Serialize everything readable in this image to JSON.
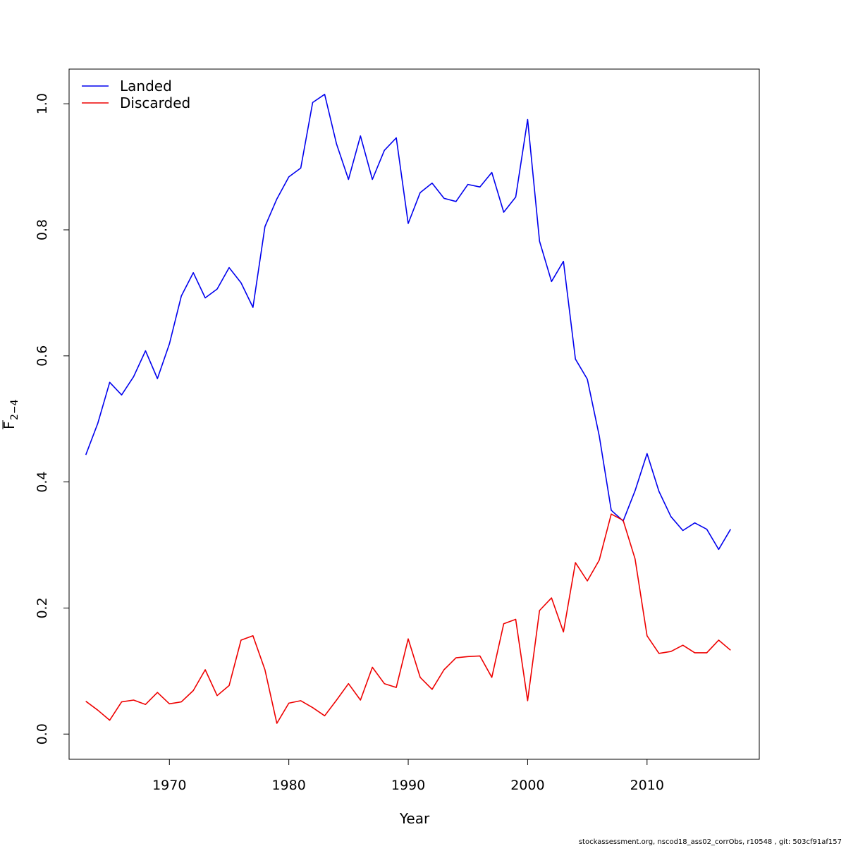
{
  "chart_data": {
    "type": "line",
    "xlabel": "Year",
    "ylabel": {
      "main": "F",
      "sub": "2−4",
      "overline": true
    },
    "xlim": [
      1961.6,
      2019.4
    ],
    "ylim": [
      -0.04,
      1.055
    ],
    "x_ticks": [
      1970,
      1980,
      1990,
      2000,
      2010
    ],
    "y_ticks": [
      0.0,
      0.2,
      0.4,
      0.6,
      0.8,
      1.0
    ],
    "y_tick_labels": [
      "0.0",
      "0.2",
      "0.4",
      "0.6",
      "0.8",
      "1.0"
    ],
    "grid": false,
    "legend_position": "top-left",
    "x": [
      1963,
      1964,
      1965,
      1966,
      1967,
      1968,
      1969,
      1970,
      1971,
      1972,
      1973,
      1974,
      1975,
      1976,
      1977,
      1978,
      1979,
      1980,
      1981,
      1982,
      1983,
      1984,
      1985,
      1986,
      1987,
      1988,
      1989,
      1990,
      1991,
      1992,
      1993,
      1994,
      1995,
      1996,
      1997,
      1998,
      1999,
      2000,
      2001,
      2002,
      2003,
      2004,
      2005,
      2006,
      2007,
      2008,
      2009,
      2010,
      2011,
      2012,
      2013,
      2014,
      2015,
      2016,
      2017
    ],
    "series": [
      {
        "name": "Landed",
        "color": "#0000ee",
        "values": [
          0.443,
          0.493,
          0.558,
          0.538,
          0.567,
          0.608,
          0.564,
          0.619,
          0.695,
          0.732,
          0.692,
          0.706,
          0.74,
          0.716,
          0.677,
          0.805,
          0.849,
          0.884,
          0.898,
          1.002,
          1.015,
          0.936,
          0.88,
          0.949,
          0.88,
          0.926,
          0.946,
          0.81,
          0.859,
          0.874,
          0.85,
          0.845,
          0.872,
          0.868,
          0.891,
          0.828,
          0.852,
          0.975,
          0.782,
          0.718,
          0.75,
          0.595,
          0.563,
          0.473,
          0.355,
          0.338,
          0.386,
          0.445,
          0.385,
          0.345,
          0.323,
          0.335,
          0.325,
          0.293,
          0.325
        ]
      },
      {
        "name": "Discarded",
        "color": "#ee0000",
        "values": [
          0.052,
          0.038,
          0.022,
          0.051,
          0.054,
          0.047,
          0.066,
          0.048,
          0.051,
          0.069,
          0.102,
          0.061,
          0.077,
          0.149,
          0.156,
          0.102,
          0.017,
          0.049,
          0.053,
          0.042,
          0.029,
          0.054,
          0.08,
          0.054,
          0.106,
          0.08,
          0.074,
          0.151,
          0.09,
          0.071,
          0.102,
          0.121,
          0.123,
          0.124,
          0.09,
          0.175,
          0.182,
          0.053,
          0.196,
          0.216,
          0.162,
          0.272,
          0.243,
          0.276,
          0.349,
          0.339,
          0.278,
          0.156,
          0.128,
          0.131,
          0.141,
          0.129,
          0.129,
          0.149,
          0.133
        ]
      }
    ]
  },
  "legend": {
    "landed_label": "Landed",
    "discarded_label": "Discarded"
  },
  "footer": {
    "text": "stockassessment.org, nscod18_ass02_corrObs, r10548 , git: 503cf91af157"
  }
}
